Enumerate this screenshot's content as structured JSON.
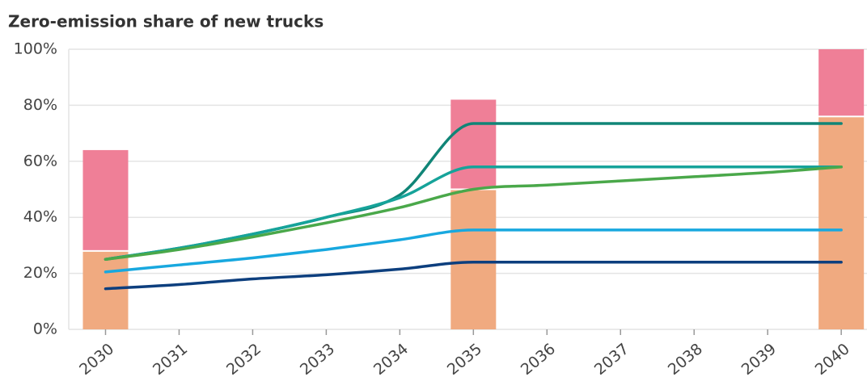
{
  "chart_data": {
    "type": "line",
    "title": "Zero-emission share of new trucks",
    "x": [
      2030,
      2031,
      2032,
      2033,
      2034,
      2035,
      2036,
      2037,
      2038,
      2039,
      2040
    ],
    "series": [
      {
        "color": "#108577",
        "values": [
          25,
          29,
          34,
          40,
          48,
          73.5,
          73.5,
          73.5,
          73.5,
          73.5,
          73.5
        ]
      },
      {
        "color": "#16a39a",
        "values": [
          25,
          29,
          34,
          40,
          47,
          58,
          58,
          58,
          58,
          58,
          58
        ]
      },
      {
        "color": "#4aa84a",
        "values": [
          25,
          28.5,
          33,
          38,
          43.5,
          50,
          51.5,
          53,
          54.5,
          56,
          58
        ]
      },
      {
        "color": "#18a8df",
        "values": [
          20.5,
          23,
          25.5,
          28.5,
          32,
          35.5,
          35.5,
          35.5,
          35.5,
          35.5,
          35.5
        ]
      },
      {
        "color": "#0d3f7e",
        "values": [
          14.5,
          16,
          18,
          19.5,
          21.5,
          24,
          24,
          24,
          24,
          24,
          24
        ]
      }
    ],
    "bars": {
      "x": [
        2030,
        2035,
        2040
      ],
      "series": [
        {
          "color": "#f0aa80",
          "values": [
            28,
            50,
            76
          ]
        },
        {
          "color": "#ef7f97",
          "values": [
            36,
            32,
            24
          ]
        }
      ]
    },
    "xlim": [
      2029.5,
      2040.35
    ],
    "xticks": [
      2030,
      2031,
      2032,
      2033,
      2034,
      2035,
      2036,
      2037,
      2038,
      2039,
      2040
    ],
    "ylim": [
      0,
      100
    ],
    "yticks": [
      {
        "value": 0,
        "label": "0%"
      },
      {
        "value": 20,
        "label": "20%"
      },
      {
        "value": 40,
        "label": "40%"
      },
      {
        "value": 60,
        "label": "60%"
      },
      {
        "value": 80,
        "label": "80%"
      },
      {
        "value": 100,
        "label": "100%"
      }
    ],
    "grid": true
  }
}
